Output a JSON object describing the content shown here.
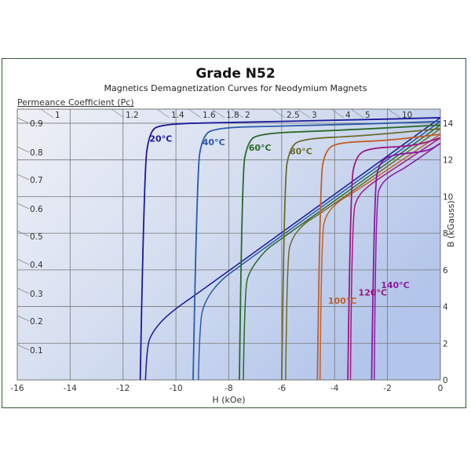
{
  "chart": {
    "title": "Grade N52",
    "subtitle": "Magnetics Demagnetization Curves for Neodymium Magnets",
    "pc_axis_title": "Permeance Coefficient (Pc)",
    "xlabel": "H (kOe)",
    "ylabel": "B (kGauss)"
  },
  "chart_data": {
    "type": "line",
    "title": "Grade N52",
    "subtitle": "Magnetics Demagnetization Curves for Neodymium Magnets",
    "xlabel": "H (kOe)",
    "ylabel": "B (kGauss)",
    "xlim": [
      -16,
      0
    ],
    "ylim": [
      0,
      14.8
    ],
    "x_ticks": [
      -16,
      -14,
      -12,
      -10,
      -8,
      -6,
      -4,
      -2,
      0
    ],
    "y_ticks": [
      0,
      2,
      4,
      6,
      8,
      10,
      12,
      14
    ],
    "grid": true,
    "secondary_axis": {
      "title": "Permeance Coefficient (Pc)",
      "top_labels": [
        "1",
        "1.2",
        "1.4",
        "1.6",
        "1.8",
        "2",
        "2.5",
        "3",
        "4",
        "5",
        "10"
      ],
      "left_labels": [
        "0.9",
        "0.8",
        "0.7",
        "0.6",
        "0.5",
        "0.4",
        "0.3",
        "0.2",
        "0.1"
      ]
    },
    "series": [
      {
        "name": "20°C",
        "color": "#1a1a9a",
        "Br": 14.3,
        "Hci": -11.3,
        "intrinsic": [
          [
            -11.35,
            0
          ],
          [
            -11.2,
            11.5
          ],
          [
            -11.0,
            13.5
          ],
          [
            -10.6,
            13.95
          ],
          [
            -8,
            14.05
          ],
          [
            -4,
            14.15
          ],
          [
            0,
            14.3
          ]
        ],
        "normal": [
          [
            -11.15,
            0
          ],
          [
            -11.1,
            1.8
          ],
          [
            -10.9,
            2.6
          ],
          [
            -10.3,
            3.6
          ],
          [
            -9,
            4.9
          ],
          [
            0,
            14.3
          ]
        ],
        "label_pos": [
          -11.0,
          13.0
        ]
      },
      {
        "name": "40°C",
        "color": "#2a5aa8",
        "Br": 14.1,
        "Hci": -9.3,
        "intrinsic": [
          [
            -9.35,
            0
          ],
          [
            -9.2,
            11.5
          ],
          [
            -9.0,
            13.2
          ],
          [
            -8.6,
            13.75
          ],
          [
            -6,
            13.85
          ],
          [
            -3,
            13.95
          ],
          [
            0,
            14.1
          ]
        ],
        "normal": [
          [
            -9.15,
            0
          ],
          [
            -9.1,
            3.2
          ],
          [
            -8.9,
            4.3
          ],
          [
            -8.4,
            5.3
          ],
          [
            -7.8,
            6.0
          ],
          [
            0,
            14.1
          ]
        ],
        "label_pos": [
          -9.0,
          12.8
        ]
      },
      {
        "name": "60°C",
        "color": "#2a6a2a",
        "Br": 13.9,
        "Hci": -7.55,
        "intrinsic": [
          [
            -7.6,
            0
          ],
          [
            -7.5,
            11.3
          ],
          [
            -7.3,
            12.9
          ],
          [
            -6.9,
            13.45
          ],
          [
            -4,
            13.6
          ],
          [
            0,
            13.9
          ]
        ],
        "normal": [
          [
            -7.45,
            0
          ],
          [
            -7.4,
            5.0
          ],
          [
            -7.2,
            6.0
          ],
          [
            -6.6,
            7.1
          ],
          [
            -6.2,
            7.5
          ],
          [
            0,
            13.9
          ]
        ],
        "label_pos": [
          -7.25,
          12.5
        ]
      },
      {
        "name": "80°C",
        "color": "#6b6b2a",
        "Br": 13.7,
        "Hci": -5.95,
        "intrinsic": [
          [
            -6.0,
            0
          ],
          [
            -5.9,
            11.0
          ],
          [
            -5.7,
            12.6
          ],
          [
            -5.3,
            13.15
          ],
          [
            -3,
            13.3
          ],
          [
            0,
            13.7
          ]
        ],
        "normal": [
          [
            -5.85,
            0
          ],
          [
            -5.8,
            6.7
          ],
          [
            -5.6,
            7.8
          ],
          [
            -5.1,
            8.6
          ],
          [
            -4.6,
            9.0
          ],
          [
            0,
            13.7
          ]
        ],
        "label_pos": [
          -5.7,
          12.3
        ]
      },
      {
        "name": "100°C",
        "color": "#c0602a",
        "Br": 13.4,
        "Hci": -4.6,
        "intrinsic": [
          [
            -4.65,
            0
          ],
          [
            -4.55,
            11.0
          ],
          [
            -4.35,
            12.5
          ],
          [
            -3.9,
            12.95
          ],
          [
            -2,
            13.05
          ],
          [
            0,
            13.4
          ]
        ],
        "normal": [
          [
            -4.55,
            0
          ],
          [
            -4.5,
            8.0
          ],
          [
            -4.3,
            9.1
          ],
          [
            -3.8,
            9.8
          ],
          [
            -3.4,
            10.1
          ],
          [
            0,
            13.4
          ]
        ],
        "label_pos": [
          -4.25,
          4.15
        ]
      },
      {
        "name": "120°C",
        "color": "#a01880",
        "Br": 13.2,
        "Hci": -3.45,
        "intrinsic": [
          [
            -3.5,
            0
          ],
          [
            -3.4,
            10.6
          ],
          [
            -3.2,
            12.2
          ],
          [
            -2.7,
            12.65
          ],
          [
            -1,
            12.75
          ],
          [
            0,
            13.2
          ]
        ],
        "normal": [
          [
            -3.4,
            0
          ],
          [
            -3.35,
            9.0
          ],
          [
            -3.1,
            10.1
          ],
          [
            -2.6,
            10.7
          ],
          [
            -2.3,
            11.0
          ],
          [
            0,
            13.2
          ]
        ],
        "label_pos": [
          -3.1,
          4.6
        ]
      },
      {
        "name": "140°C",
        "color": "#8a1aa0",
        "Br": 12.9,
        "Hci": -2.55,
        "intrinsic": [
          [
            -2.6,
            0
          ],
          [
            -2.5,
            10.5
          ],
          [
            -2.3,
            11.9
          ],
          [
            -1.8,
            12.3
          ],
          [
            -0.5,
            12.45
          ],
          [
            0,
            12.9
          ]
        ],
        "normal": [
          [
            -2.5,
            0
          ],
          [
            -2.45,
            9.9
          ],
          [
            -2.2,
            10.8
          ],
          [
            -1.7,
            11.3
          ],
          [
            -1.4,
            11.5
          ],
          [
            0,
            12.9
          ]
        ],
        "label_pos": [
          -2.25,
          5.0
        ]
      }
    ]
  }
}
